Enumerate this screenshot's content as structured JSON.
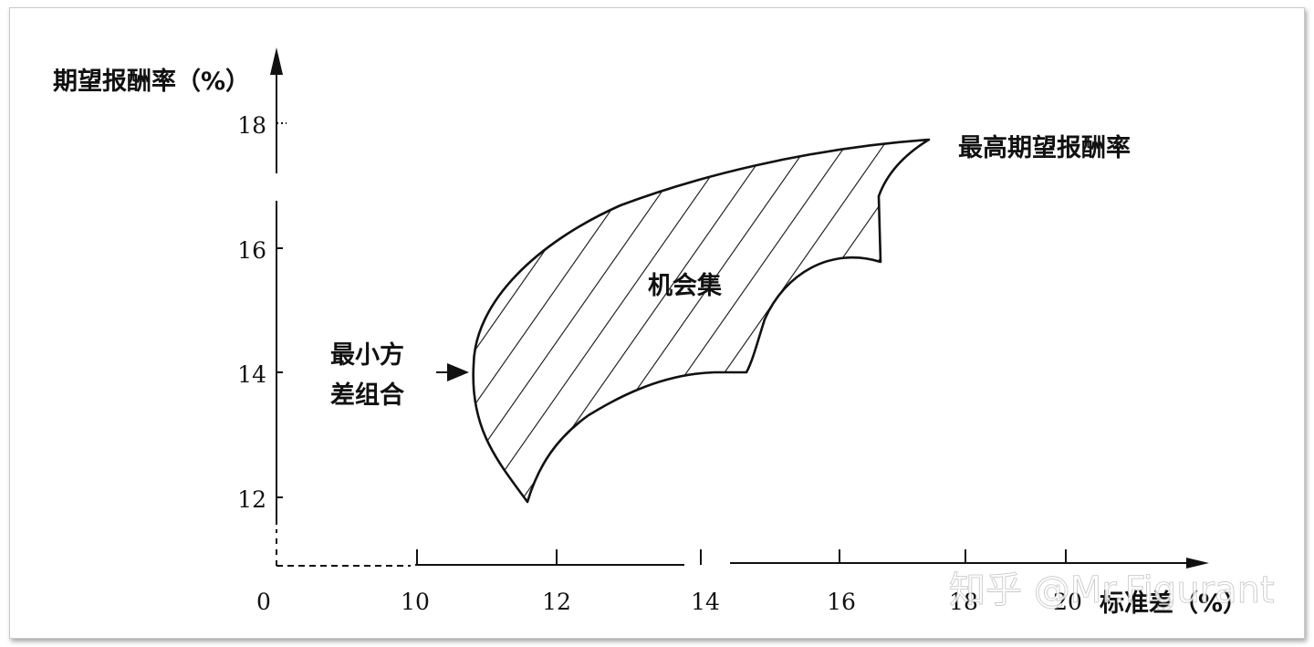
{
  "y_axis": {
    "title": "期望报酬率（%）",
    "ticks": [
      "18",
      "16",
      "14",
      "12"
    ]
  },
  "x_axis": {
    "title": "标准差（%）",
    "origin": "0",
    "ticks": [
      "10",
      "12",
      "14",
      "16",
      "18",
      "20"
    ]
  },
  "labels": {
    "max_return": "最高期望报酬率",
    "opportunity_set": "机会集",
    "min_variance_line1": "最小方",
    "min_variance_line2": "差组合"
  },
  "watermark": "知乎 @Mr.Figurant"
}
